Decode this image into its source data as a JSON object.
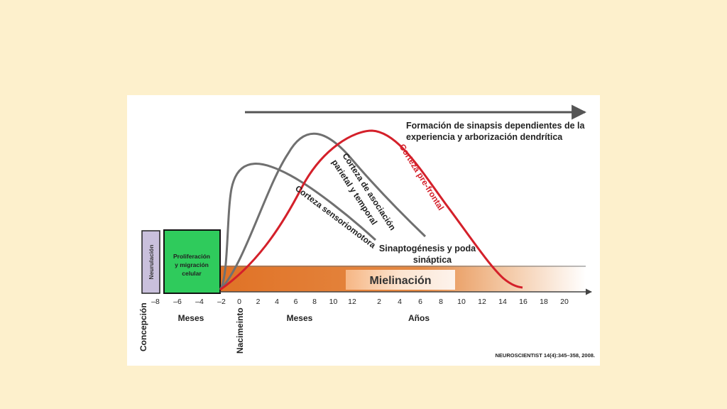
{
  "top_arrow_label": [
    "Formación de sinapsis dependientes de la",
    "experiencia y arborización dendrítica"
  ],
  "neurulacion_label": "Neurulación",
  "proliferacion_label": [
    "Proliferación",
    "y migración",
    "celular"
  ],
  "mielinacion_label": "Mielinación",
  "curves": {
    "sensoriomotora": "Corteza sensoriomotora",
    "asociacion": [
      "Corteza de asociación",
      "parietal y temporal"
    ],
    "prefrontal": "Corteza pre-frontal"
  },
  "sinaptogenesis_label": [
    "Sinaptogénesis y poda",
    "sináptica"
  ],
  "tick_labels": {
    "prenatal_months": [
      "–8",
      "–6",
      "–4",
      "–2"
    ],
    "postnatal_months": [
      "0",
      "2",
      "4",
      "6",
      "8",
      "10",
      "12"
    ],
    "years": [
      "2",
      "4",
      "6",
      "8",
      "10",
      "12",
      "14",
      "16",
      "18",
      "20"
    ]
  },
  "unit_labels": {
    "meses_prenatal": "Meses",
    "meses_postnatal": "Meses",
    "anos": "Años"
  },
  "milestones": {
    "concepcion": "Concepción",
    "nacimiento": "Nacimeinto"
  },
  "citation": "NEUROSCIENTIST 14(4):345–358,  2008.",
  "colors": {
    "background": "#fdf0cc",
    "panel": "#ffffff",
    "gray_curve": "#707070",
    "red_curve": "#d4202a",
    "neurulacion_fill": "#c9c0dc",
    "proliferacion_fill": "#2fcb5c",
    "mielinacion_band": "#e07226"
  }
}
